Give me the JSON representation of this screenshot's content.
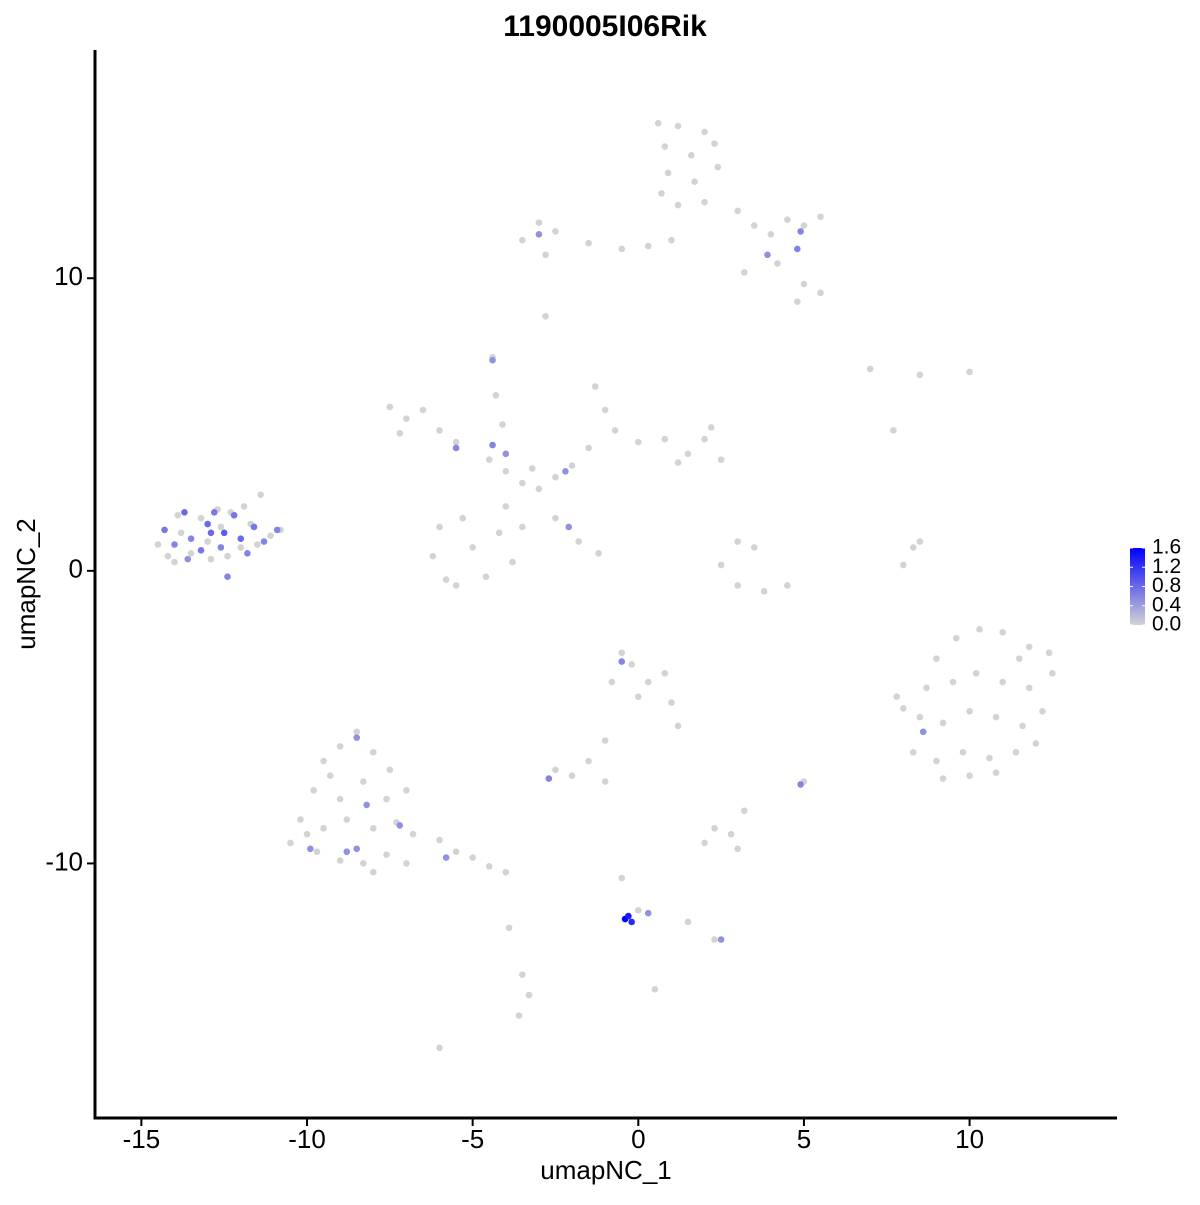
{
  "chart_data": {
    "type": "scatter",
    "title": "1190005I06Rik",
    "xlabel": "umapNC_1",
    "ylabel": "umapNC_2",
    "xlim": [
      -16.4,
      14.45
    ],
    "ylim": [
      -18.7,
      17.8
    ],
    "xticks": [
      -15,
      -10,
      -5,
      0,
      5,
      10
    ],
    "yticks": [
      -10,
      0,
      10
    ],
    "colorscale": [
      "#d3d3d3",
      "#0000ff"
    ],
    "clim": [
      0,
      1.6
    ],
    "cticks": [
      {
        "value": 0,
        "label": "0.0"
      },
      0.4,
      0.8,
      1.2,
      1.6
    ],
    "x": [
      -14.5,
      -14.2,
      -13.8,
      -13.5,
      -13.2,
      -12.9,
      -12.6,
      -12.3,
      -12.0,
      -11.7,
      -11.4,
      -11.1,
      -10.8,
      -13.9,
      -13.0,
      -12.4,
      -11.9,
      -14.0,
      -12.7,
      -11.5,
      -7.5,
      -7.0,
      -6.5,
      -6.0,
      -5.5,
      -7.2,
      -4.5,
      -4.0,
      -3.5,
      -3.0,
      -2.5,
      -3.2,
      -4.4,
      -4.3,
      -4.1,
      -6.0,
      -6.2,
      -5.8,
      -5.3,
      -5.0,
      -4.6,
      -4.2,
      -3.8,
      -4.0,
      -3.5,
      -5.5,
      -2.0,
      -1.5,
      -1.0,
      -1.3,
      -0.7,
      0,
      0.8,
      1.5,
      2.0,
      2.5,
      2.2,
      1.2,
      -2.5,
      -1.8,
      -1.2,
      0.6,
      1.2,
      2.0,
      0.8,
      1.6,
      2.3,
      0.9,
      1.7,
      2.4,
      1.2,
      2.0,
      0.7,
      3.0,
      3.5,
      4.0,
      4.5,
      5.0,
      5.5,
      4.2,
      3.2,
      5.0,
      5.5,
      4.8,
      -3.5,
      -3.0,
      -2.5,
      -2.8,
      -1.5,
      -0.5,
      0.3,
      1.0,
      -2.8,
      -9.5,
      -9.0,
      -8.5,
      -8.0,
      -7.5,
      -9.8,
      -9.0,
      -8.3,
      -7.6,
      -7.0,
      -10.2,
      -9.5,
      -8.8,
      -8.0,
      -7.3,
      -10.5,
      -9.7,
      -9.0,
      -8.3,
      -7.6,
      -8.0,
      -6.8,
      -6.0,
      -5.5,
      -5.0,
      -4.5,
      -4.0,
      -9.3,
      -7.0,
      -10.0,
      9.0,
      9.6,
      10.3,
      11.0,
      11.8,
      12.4,
      8.7,
      9.5,
      10.2,
      11.0,
      11.8,
      12.5,
      8.5,
      9.2,
      10.0,
      10.8,
      11.6,
      12.2,
      8.3,
      9.0,
      9.8,
      10.6,
      11.4,
      12.0,
      9.2,
      10.0,
      10.8,
      7.8,
      8.0,
      11.5,
      -0.5,
      -0.2,
      0.3,
      0.8,
      -0.8,
      0,
      1.0,
      1.2,
      -1.0,
      -1.5,
      -2.5,
      -2.0,
      -1.0,
      2.3,
      2.8,
      2.0,
      3.0,
      3.2,
      5.0,
      2.5,
      3.0,
      3.8,
      4.5,
      3.0,
      3.5,
      8.0,
      8.3,
      8.5,
      -0.5,
      0,
      1.5,
      2.3,
      -3.5,
      -3.3,
      -3.6,
      -3.9,
      -6.0,
      0.5,
      7.0,
      8.5,
      10,
      7.7,
      -14.3,
      -14.0,
      -13.7,
      -13.5,
      -13.2,
      -13.0,
      -12.8,
      -12.6,
      -12.5,
      -12.2,
      -12.0,
      -11.8,
      -11.6,
      -12.4,
      -13.6,
      -11.3,
      -10.9,
      -12.9,
      -5.5,
      -4.4,
      -4.0,
      -2.2,
      -2.1,
      -4.4,
      4.9,
      4.8,
      3.9,
      -3.0,
      -8.5,
      -8.2,
      -7.2,
      -9.9,
      -8.8,
      -8.5,
      -5.8,
      8.6,
      -0.5,
      -2.7,
      4.9,
      0.3,
      2.5,
      -0.4,
      -0.2,
      -0.3
    ],
    "y": [
      0.9,
      0.5,
      1.3,
      0.6,
      1.8,
      0.4,
      1.5,
      2.0,
      0.8,
      1.6,
      2.6,
      1.2,
      1.4,
      1.9,
      1.0,
      0.5,
      2.2,
      0.3,
      2.1,
      0.9,
      5.6,
      5.2,
      5.5,
      4.8,
      4.4,
      4.7,
      3.8,
      3.4,
      3.0,
      2.8,
      3.2,
      3.5,
      7.3,
      6.0,
      5.0,
      1.5,
      0.5,
      -0.3,
      1.8,
      0.8,
      -0.2,
      1.3,
      0.3,
      2.2,
      1.5,
      -0.5,
      3.6,
      4.2,
      5.5,
      6.3,
      4.8,
      4.4,
      4.5,
      4.0,
      4.5,
      3.8,
      4.9,
      3.7,
      1.8,
      1.0,
      0.6,
      15.3,
      15.2,
      15.0,
      14.5,
      14.2,
      14.6,
      13.6,
      13.3,
      13.8,
      12.5,
      12.6,
      12.9,
      12.3,
      11.8,
      11.5,
      12.0,
      11.8,
      12.1,
      10.5,
      10.2,
      9.8,
      9.5,
      9.2,
      11.3,
      11.9,
      11.6,
      10.8,
      11.2,
      11.0,
      11.1,
      11.3,
      8.7,
      -6.5,
      -6.0,
      -5.5,
      -6.2,
      -6.8,
      -7.5,
      -7.8,
      -7.2,
      -7.8,
      -7.5,
      -8.5,
      -8.8,
      -8.5,
      -8.8,
      -8.6,
      -9.3,
      -9.6,
      -9.9,
      -10.0,
      -9.7,
      -10.3,
      -9.0,
      -9.2,
      -9.6,
      -9.8,
      -10.1,
      -10.3,
      -7.0,
      -10.0,
      -9.0,
      -3.0,
      -2.3,
      -2.0,
      -2.1,
      -2.6,
      -2.8,
      -4.0,
      -3.8,
      -3.5,
      -3.8,
      -4.0,
      -3.5,
      -5.0,
      -5.2,
      -4.8,
      -5.0,
      -5.3,
      -4.8,
      -6.2,
      -6.5,
      -6.2,
      -6.4,
      -6.2,
      -5.9,
      -7.1,
      -7.0,
      -6.9,
      -4.3,
      -4.7,
      -3.0,
      -2.8,
      -3.2,
      -3.8,
      -3.5,
      -3.8,
      -4.3,
      -4.5,
      -5.3,
      -5.8,
      -6.5,
      -6.8,
      -7.0,
      -7.2,
      -8.8,
      -9.0,
      -9.3,
      -9.5,
      -8.2,
      -7.2,
      0.2,
      -0.5,
      -0.7,
      -0.5,
      1.0,
      0.8,
      0.2,
      0.8,
      1.0,
      -10.5,
      -11.6,
      -12.0,
      -12.6,
      -13.8,
      -14.5,
      -15.2,
      -12.2,
      -16.3,
      -14.3,
      6.9,
      6.7,
      6.8,
      4.8,
      1.4,
      0.9,
      2.0,
      1.1,
      0.7,
      1.6,
      2.0,
      0.8,
      1.3,
      1.9,
      1.1,
      0.6,
      1.5,
      -0.2,
      0.4,
      1.0,
      1.4,
      1.3,
      4.2,
      4.3,
      4.0,
      3.4,
      1.5,
      7.2,
      11.6,
      11.0,
      10.8,
      11.5,
      -5.7,
      -8.0,
      -8.7,
      -9.5,
      -9.6,
      -9.5,
      -9.8,
      -5.5,
      -3.1,
      -7.1,
      -7.3,
      -11.7,
      -12.6,
      -11.9,
      -12.0,
      -11.8
    ],
    "values": [
      0,
      0,
      0,
      0,
      0,
      0,
      0,
      0,
      0,
      0,
      0,
      0,
      0,
      0,
      0,
      0,
      0,
      0,
      0,
      0,
      0,
      0,
      0,
      0,
      0,
      0,
      0,
      0,
      0,
      0,
      0,
      0,
      0,
      0,
      0,
      0,
      0,
      0,
      0,
      0,
      0,
      0,
      0,
      0,
      0,
      0,
      0,
      0,
      0,
      0,
      0,
      0,
      0,
      0,
      0,
      0,
      0,
      0,
      0,
      0,
      0,
      0,
      0,
      0,
      0,
      0,
      0,
      0,
      0,
      0,
      0,
      0,
      0,
      0,
      0,
      0,
      0,
      0,
      0,
      0,
      0,
      0,
      0,
      0,
      0,
      0,
      0,
      0,
      0,
      0,
      0,
      0,
      0,
      0,
      0,
      0,
      0,
      0,
      0,
      0,
      0,
      0,
      0,
      0,
      0,
      0,
      0,
      0,
      0,
      0,
      0,
      0,
      0,
      0,
      0,
      0,
      0,
      0,
      0,
      0,
      0,
      0,
      0,
      0,
      0,
      0,
      0,
      0,
      0,
      0,
      0,
      0,
      0,
      0,
      0,
      0,
      0,
      0,
      0,
      0,
      0,
      0,
      0,
      0,
      0,
      0,
      0,
      0,
      0,
      0,
      0,
      0,
      0,
      0,
      0,
      0,
      0,
      0,
      0,
      0,
      0,
      0,
      0,
      0,
      0,
      0,
      0,
      0,
      0,
      0,
      0,
      0,
      0,
      0,
      0,
      0,
      0,
      0,
      0,
      0,
      0,
      0,
      0,
      0,
      0,
      0,
      0,
      0,
      0,
      0,
      0,
      0,
      0,
      0,
      0,
      0.7,
      0.6,
      0.8,
      0.6,
      0.7,
      0.8,
      0.7,
      0.6,
      0.9,
      0.7,
      0.8,
      0.6,
      0.7,
      0.6,
      0.5,
      0.6,
      0.6,
      0.8,
      0.6,
      0.6,
      0.5,
      0.5,
      0.5,
      0.5,
      0.6,
      0.6,
      0.5,
      0.5,
      0.5,
      0.5,
      0.5,
      0.5,
      0.5,
      0.5,
      0.5,
      0.5,
      0.6,
      0.6,
      0.6,
      0.5,
      0.5,
      1.6,
      1.3,
      1.4
    ]
  }
}
